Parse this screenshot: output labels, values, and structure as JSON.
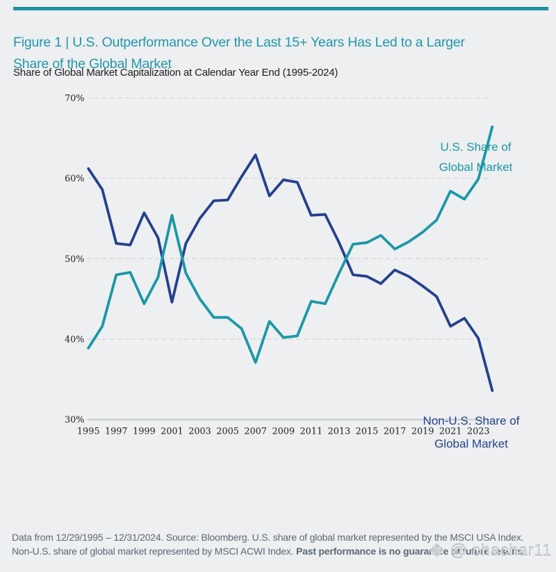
{
  "header": {
    "title": "Figure 1 | U.S. Outperformance Over the Last 15+ Years Has Led to a Larger\nShare of the Global Market",
    "subtitle": "Share of Global Market Capitalization at Calendar Year End (1995-2024)"
  },
  "chart_data": {
    "type": "line",
    "title": "Share of Global Market Capitalization at Calendar Year End (1995-2024)",
    "x": [
      1995,
      1996,
      1997,
      1998,
      1999,
      2000,
      2001,
      2002,
      2003,
      2004,
      2005,
      2006,
      2007,
      2008,
      2009,
      2010,
      2011,
      2012,
      2013,
      2014,
      2015,
      2016,
      2017,
      2018,
      2019,
      2020,
      2021,
      2022,
      2023,
      2024
    ],
    "series": [
      {
        "name": "U.S. Share of Global Market",
        "color": "#1b97a7",
        "values": [
          38.9,
          41.6,
          48.0,
          48.3,
          44.4,
          47.7,
          55.4,
          48.2,
          45.0,
          42.7,
          42.7,
          41.3,
          37.1,
          42.2,
          40.2,
          40.4,
          44.7,
          44.4,
          48.2,
          51.8,
          52.0,
          52.9,
          51.2,
          52.1,
          53.3,
          54.8,
          58.4,
          57.4,
          59.9,
          66.4
        ]
      },
      {
        "name": "Non-U.S. Share of Global Market",
        "color": "#24408f",
        "values": [
          61.2,
          58.6,
          51.9,
          51.7,
          55.7,
          52.6,
          44.6,
          51.9,
          55.0,
          57.2,
          57.3,
          60.2,
          62.9,
          57.8,
          59.8,
          59.5,
          55.4,
          55.5,
          52.0,
          48.0,
          47.8,
          46.9,
          48.6,
          47.8,
          46.6,
          45.3,
          41.6,
          42.6,
          40.1,
          33.6
        ]
      }
    ],
    "ylim": [
      30,
      70
    ],
    "yticks": [
      {
        "value": 70,
        "label": "70%"
      },
      {
        "value": 60,
        "label": "60%"
      },
      {
        "value": 50,
        "label": "50%"
      },
      {
        "value": 40,
        "label": "40%"
      },
      {
        "value": 30,
        "label": "30%"
      }
    ],
    "xticks": [
      1995,
      1997,
      1999,
      2001,
      2003,
      2005,
      2007,
      2009,
      2011,
      2013,
      2015,
      2017,
      2019,
      2021,
      2023
    ],
    "grid": "horizontal dashed, bottom axis solid",
    "legend_position": "labels beside lines (right side)",
    "legend": {
      "us": "U.S. Share of\nGlobal Market",
      "non_us": "Non-U.S. Share of\nGlobal Market"
    }
  },
  "footer": {
    "text": "Data from 12/29/1995 – 12/31/2024. Source: Bloomberg. U.S. share of global market represented by the MSCI USA Index. Non-U.S. share of global market represented by MSCI ACWI Index. ",
    "bold_text": "Past performance is no guarantee of future results."
  },
  "watermark": {
    "icon": "❖",
    "text": "@ chachar11"
  },
  "colors": {
    "background": "#edeff0",
    "accent_rule": "#1d94a8",
    "title": "#2296ad",
    "us_line": "#1b97a7",
    "non_us_line": "#24408f",
    "gridline": "#d4d6d8",
    "axis_line": "#c3c7c9",
    "tick_text": "#1c1c1c",
    "footer_text": "#5d6774",
    "watermark_text": "#c9cdd3"
  }
}
